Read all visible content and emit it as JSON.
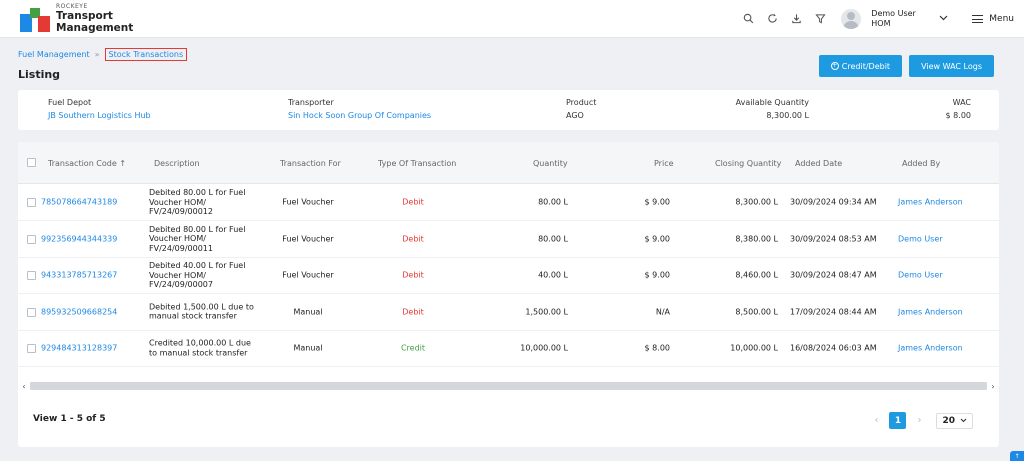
{
  "app": {
    "brand_small": "ROCKEYE",
    "brand_line1": "Transport",
    "brand_line2": "Management"
  },
  "header": {
    "user_name": "Demo User",
    "user_code": "HOM",
    "menu_label": "Menu",
    "icons": [
      "search-icon",
      "refresh-icon",
      "download-icon",
      "filter-icon"
    ]
  },
  "breadcrumb": {
    "parent": "Fuel Management",
    "current": "Stock Transactions"
  },
  "page_title": "Listing",
  "actions": {
    "credit_debit": "Credit/Debit",
    "wac_logs": "View WAC Logs"
  },
  "summary": {
    "fuel_depot_label": "Fuel Depot",
    "fuel_depot_value": "JB Southern Logistics Hub",
    "transporter_label": "Transporter",
    "transporter_value": "Sin Hock Soon Group Of Companies",
    "product_label": "Product",
    "product_value": "AGO",
    "available_label": "Available Quantity",
    "available_value": "8,300.00 L",
    "wac_label": "WAC",
    "wac_value": "$ 8.00"
  },
  "table": {
    "columns": {
      "code": "Transaction Code",
      "description": "Description",
      "for": "Transaction For",
      "type": "Type Of Transaction",
      "quantity": "Quantity",
      "price": "Price",
      "closing": "Closing Quantity",
      "date": "Added Date",
      "by": "Added By"
    },
    "rows": [
      {
        "code": "785078664743189",
        "description": "Debited 80.00 L for Fuel Voucher HOM/ FV/24/09/00012",
        "for": "Fuel Voucher",
        "type": "Debit",
        "quantity": "80.00 L",
        "price": "$ 9.00",
        "closing": "8,300.00 L",
        "date": "30/09/2024 09:34 AM",
        "by": "James Anderson"
      },
      {
        "code": "992356944344339",
        "description": "Debited 80.00 L for Fuel Voucher HOM/ FV/24/09/00011",
        "for": "Fuel Voucher",
        "type": "Debit",
        "quantity": "80.00 L",
        "price": "$ 9.00",
        "closing": "8,380.00 L",
        "date": "30/09/2024 08:53 AM",
        "by": "Demo User"
      },
      {
        "code": "943313785713267",
        "description": "Debited 40.00 L for Fuel Voucher HOM/ FV/24/09/00007",
        "for": "Fuel Voucher",
        "type": "Debit",
        "quantity": "40.00 L",
        "price": "$ 9.00",
        "closing": "8,460.00 L",
        "date": "30/09/2024 08:47 AM",
        "by": "Demo User"
      },
      {
        "code": "895932509668254",
        "description": "Debited 1,500.00 L due to manual stock transfer",
        "for": "Manual",
        "type": "Debit",
        "quantity": "1,500.00 L",
        "price": "N/A",
        "closing": "8,500.00 L",
        "date": "17/09/2024 08:44 AM",
        "by": "James Anderson"
      },
      {
        "code": "929484313128397",
        "description": "Credited 10,000.00 L due to manual stock transfer",
        "for": "Manual",
        "type": "Credit",
        "quantity": "10,000.00 L",
        "price": "$ 8.00",
        "closing": "10,000.00 L",
        "date": "16/08/2024 06:03 AM",
        "by": "James Anderson"
      }
    ]
  },
  "footer": {
    "view_text": "View 1 - 5 of 5",
    "current_page": "1",
    "page_size": "20"
  },
  "colors": {
    "accent": "#1e9be0",
    "debit": "#e53935",
    "credit": "#43a047"
  }
}
